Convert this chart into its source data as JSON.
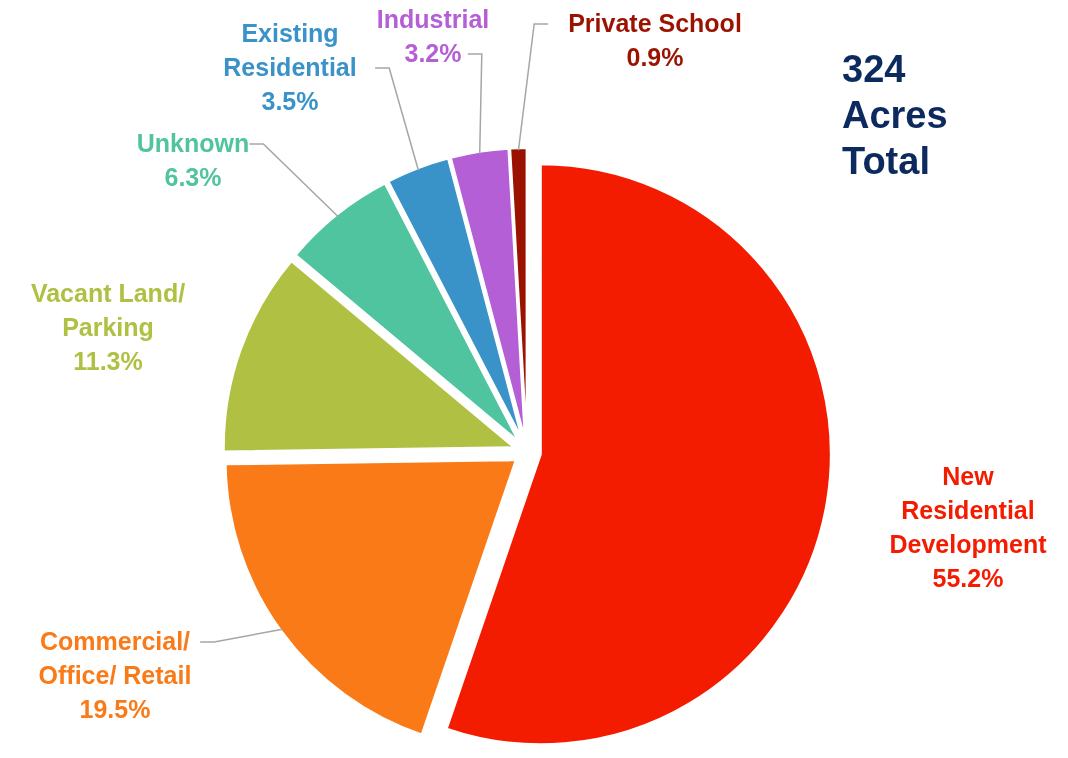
{
  "chart_data": {
    "type": "pie",
    "categories": [
      "New Residential Development",
      "Commercial/ Office/ Retail",
      "Vacant Land/ Parking",
      "Unknown",
      "Existing Residential",
      "Industrial",
      "Private School"
    ],
    "values": [
      55.2,
      19.5,
      11.3,
      6.3,
      3.5,
      3.2,
      0.9
    ],
    "value_labels": [
      "55.2%",
      "19.5%",
      "11.3%",
      "6.3%",
      "3.5%",
      "3.2%",
      "0.9%"
    ],
    "colors": [
      "#f41c00",
      "#f97a17",
      "#afc042",
      "#4fc49f",
      "#3a93c8",
      "#b45fd6",
      "#9b1300"
    ],
    "annotations": [
      "324 Acres Total"
    ]
  }
}
